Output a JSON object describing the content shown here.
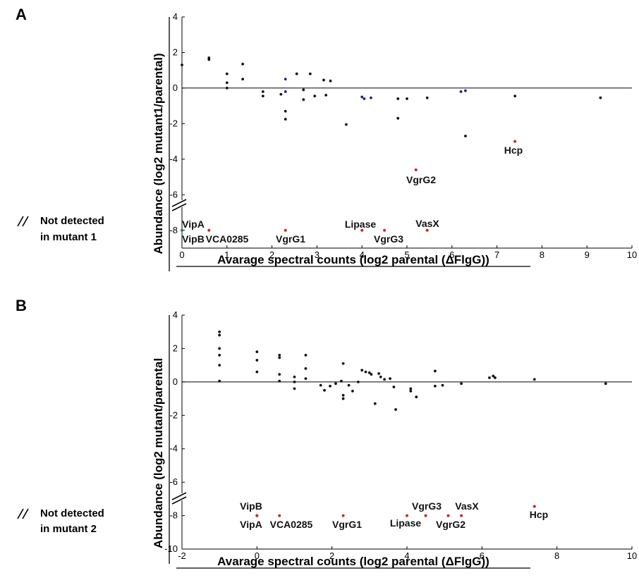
{
  "panels": [
    {
      "letter": "A",
      "not_detected_line1": "Not detected",
      "not_detected_line2": "in  mutant 1"
    },
    {
      "letter": "B",
      "not_detected_line1": "Not detected",
      "not_detected_line2": "in  mutant 2"
    }
  ],
  "chart_data": [
    {
      "type": "scatter",
      "title": "",
      "xlabel": "Avarage spectral counts (log2 parental (ΔFlgG))",
      "ylabel": "Abundance  (log2 mutant1/parental)",
      "xlim": [
        0,
        10
      ],
      "ylim": [
        -9,
        4
      ],
      "xticks": [
        0,
        1,
        2,
        3,
        4,
        5,
        6,
        7,
        8,
        9,
        10
      ],
      "yticks": [
        4,
        2,
        0,
        -2,
        -4,
        -6,
        -8
      ],
      "grid": false,
      "zero_line": true,
      "colors": {
        "point": "#111111",
        "point_blue": "#1a237e",
        "highlight": "#c62828",
        "green": "#2e7d6b"
      },
      "series": [
        {
          "points": [
            [
              0,
              1.3
            ],
            [
              0.6,
              1.7
            ],
            [
              0.6,
              1.6
            ],
            [
              1,
              0.8
            ],
            [
              1,
              0.3
            ],
            [
              1,
              0
            ],
            [
              1.35,
              1.35
            ],
            [
              1.35,
              0.5
            ],
            [
              1.8,
              -0.2
            ],
            [
              1.8,
              -0.45
            ],
            [
              2.2,
              -0.35
            ],
            [
              2.3,
              -1.3
            ],
            [
              2.3,
              -1.75
            ],
            [
              2.55,
              0.8
            ],
            [
              2.7,
              -0.1
            ],
            [
              2.7,
              -0.65
            ],
            [
              2.85,
              0.8
            ],
            [
              2.95,
              -0.45
            ],
            [
              3.15,
              0.45
            ],
            [
              3.2,
              -0.4
            ],
            [
              3.3,
              0.4
            ],
            [
              3.65,
              -2.05
            ],
            [
              4.8,
              -1.7
            ],
            [
              4.8,
              -0.6
            ],
            [
              5.0,
              -0.6
            ],
            [
              5.45,
              -0.55
            ],
            [
              6.3,
              -2.7
            ],
            [
              7.4,
              -0.45
            ],
            [
              9.3,
              -0.55
            ]
          ]
        },
        {
          "points": [
            [
              2.3,
              0.5
            ],
            [
              2.3,
              -0.2
            ],
            [
              4.0,
              -0.5
            ],
            [
              4.05,
              -0.6
            ],
            [
              4.2,
              -0.55
            ],
            [
              6.2,
              -0.2
            ],
            [
              6.3,
              -0.15
            ]
          ]
        }
      ],
      "labeled_points": [
        {
          "x": 7.4,
          "y": -3.0,
          "label": "Hcp"
        },
        {
          "x": 5.2,
          "y": -4.6,
          "label": "VgrG2"
        },
        {
          "x": 5.45,
          "y": -8.0,
          "label": "VasX"
        },
        {
          "x": 4.0,
          "y": -8.0,
          "label": "Lipase"
        },
        {
          "x": 4.5,
          "y": -8.0,
          "label": "VgrG3"
        },
        {
          "x": 2.3,
          "y": -8.0,
          "label": "VgrG1"
        },
        {
          "x": 0.6,
          "y": -8.0,
          "label": "VCA0285"
        },
        {
          "x": 0.0,
          "y": -8.0,
          "label": "VipA"
        },
        {
          "x": 0.0,
          "y": -8.0,
          "label": "VipB"
        }
      ]
    },
    {
      "type": "scatter",
      "title": "",
      "xlabel": "Avarage spectral counts (log2 parental (ΔFlgG))",
      "ylabel": "Abundance  (log2  mutant/parental",
      "xlim": [
        -2,
        10
      ],
      "ylim": [
        -10,
        4
      ],
      "xticks": [
        -2,
        0,
        2,
        4,
        6,
        8,
        10
      ],
      "yticks": [
        4,
        2,
        0,
        -2,
        -4,
        -6,
        -8,
        -10
      ],
      "grid": false,
      "zero_line": true,
      "colors": {
        "point": "#111111",
        "highlight": "#c62828"
      },
      "series": [
        {
          "points": [
            [
              -1,
              3.0
            ],
            [
              -1,
              2.8
            ],
            [
              -1,
              2.0
            ],
            [
              -1,
              1.6
            ],
            [
              -1,
              1.0
            ],
            [
              -1,
              0.05
            ],
            [
              0,
              1.8
            ],
            [
              0,
              1.3
            ],
            [
              0,
              0.6
            ],
            [
              0.6,
              1.6
            ],
            [
              0.6,
              1.45
            ],
            [
              0.6,
              0.45
            ],
            [
              0.6,
              0.05
            ],
            [
              1.0,
              0.3
            ],
            [
              1.0,
              0.0
            ],
            [
              1.0,
              -0.4
            ],
            [
              1.3,
              1.6
            ],
            [
              1.3,
              0.8
            ],
            [
              1.3,
              0.2
            ],
            [
              1.7,
              -0.2
            ],
            [
              1.8,
              -0.5
            ],
            [
              1.95,
              -0.25
            ],
            [
              2.1,
              -0.1
            ],
            [
              2.25,
              0.05
            ],
            [
              2.3,
              1.1
            ],
            [
              2.3,
              -0.8
            ],
            [
              2.3,
              -1.0
            ],
            [
              2.45,
              -0.2
            ],
            [
              2.55,
              -0.55
            ],
            [
              2.7,
              0.0
            ],
            [
              2.8,
              0.7
            ],
            [
              2.9,
              0.6
            ],
            [
              3.0,
              0.55
            ],
            [
              3.05,
              0.45
            ],
            [
              3.15,
              -1.3
            ],
            [
              3.25,
              0.5
            ],
            [
              3.3,
              0.3
            ],
            [
              3.4,
              0.15
            ],
            [
              3.55,
              0.2
            ],
            [
              3.65,
              -0.3
            ],
            [
              3.7,
              -1.65
            ],
            [
              4.1,
              -0.4
            ],
            [
              4.1,
              -0.55
            ],
            [
              4.25,
              -0.9
            ],
            [
              4.75,
              0.65
            ],
            [
              4.75,
              -0.25
            ],
            [
              4.95,
              -0.2
            ],
            [
              5.45,
              -0.1
            ],
            [
              6.2,
              0.25
            ],
            [
              6.3,
              0.35
            ],
            [
              6.35,
              0.25
            ],
            [
              7.4,
              0.15
            ],
            [
              9.3,
              -0.1
            ]
          ]
        }
      ],
      "labeled_points": [
        {
          "x": 0.0,
          "y": -8.0,
          "label": "VipB"
        },
        {
          "x": 0.0,
          "y": -8.0,
          "label": "VipA"
        },
        {
          "x": 0.6,
          "y": -8.0,
          "label": "VCA0285"
        },
        {
          "x": 2.3,
          "y": -8.0,
          "label": "VgrG1"
        },
        {
          "x": 4.0,
          "y": -8.0,
          "label": "Lipase"
        },
        {
          "x": 4.5,
          "y": -8.0,
          "label": "VgrG3"
        },
        {
          "x": 5.1,
          "y": -8.0,
          "label": "VgrG2"
        },
        {
          "x": 5.45,
          "y": -8.0,
          "label": "VasX"
        },
        {
          "x": 7.4,
          "y": -7.45,
          "label": "Hcp"
        }
      ]
    }
  ]
}
